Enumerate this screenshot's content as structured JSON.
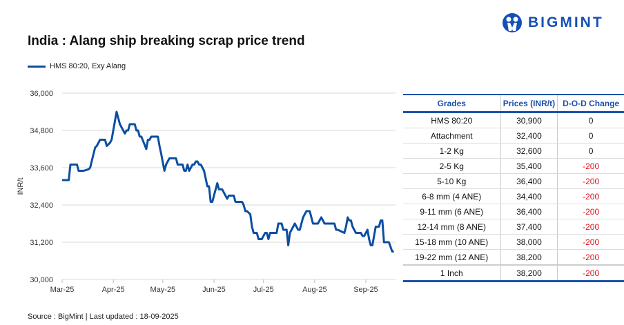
{
  "title": "India : Alang ship breaking scrap price trend",
  "logo": {
    "text": "BIGMINT",
    "color": "#1550b4"
  },
  "source": "Source : BigMint | Last updated : 18-09-2025",
  "table": {
    "headers": [
      "Grades",
      "Prices (INR/t)",
      "D-O-D Change"
    ],
    "rows": [
      [
        "HMS 80:20",
        "30,900",
        "0"
      ],
      [
        "Attachment",
        "32,400",
        "0"
      ],
      [
        "1-2 Kg",
        "32,600",
        "0"
      ],
      [
        "2-5 Kg",
        "35,400",
        "-200"
      ],
      [
        "5-10 Kg",
        "36,400",
        "-200"
      ],
      [
        "6-8 mm (4 ANE)",
        "34,400",
        "-200"
      ],
      [
        "9-11 mm (6 ANE)",
        "36,400",
        "-200"
      ],
      [
        "12-14 mm (8 ANE)",
        "37,400",
        "-200"
      ],
      [
        "15-18 mm (10 ANE)",
        "38,000",
        "-200"
      ],
      [
        "19-22 mm (12 ANE)",
        "38,200",
        "-200"
      ],
      [
        "1 Inch",
        "38,200",
        "-200"
      ]
    ],
    "negative_color": "#e0101c"
  },
  "chart_data": {
    "type": "line",
    "title": "India : Alang ship breaking scrap price trend",
    "xlabel": "",
    "ylabel": "INR/t",
    "ylim": [
      30000,
      36000
    ],
    "yticks": [
      "30,000",
      "31,200",
      "32,400",
      "33,600",
      "34,800",
      "36,000"
    ],
    "xlim": [
      "2025-03-01",
      "2025-09-19"
    ],
    "xticks": [
      {
        "date": "2025-03-01",
        "label": "Mar-25"
      },
      {
        "date": "2025-04-01",
        "label": "Apr-25"
      },
      {
        "date": "2025-05-01",
        "label": "May-25"
      },
      {
        "date": "2025-06-01",
        "label": "Jun-25"
      },
      {
        "date": "2025-07-01",
        "label": "Jul-25"
      },
      {
        "date": "2025-08-01",
        "label": "Aug-25"
      },
      {
        "date": "2025-09-01",
        "label": "Sep-25"
      }
    ],
    "grid": true,
    "legend": "top-left",
    "series": [
      {
        "name": "HMS 80:20, Exy Alang",
        "color": "#0b4ea2",
        "x": [
          "2025-03-01",
          "2025-03-05",
          "2025-03-06",
          "2025-03-10",
          "2025-03-11",
          "2025-03-14",
          "2025-03-17",
          "2025-03-18",
          "2025-03-21",
          "2025-03-22",
          "2025-03-24",
          "2025-03-27",
          "2025-03-28",
          "2025-03-30",
          "2025-03-31",
          "2025-04-03",
          "2025-04-05",
          "2025-04-08",
          "2025-04-09",
          "2025-04-10",
          "2025-04-11",
          "2025-04-14",
          "2025-04-15",
          "2025-04-16",
          "2025-04-17",
          "2025-04-18",
          "2025-04-21",
          "2025-04-22",
          "2025-04-23",
          "2025-04-24",
          "2025-04-28",
          "2025-04-29",
          "2025-04-30",
          "2025-05-02",
          "2025-05-03",
          "2025-05-05",
          "2025-05-09",
          "2025-05-10",
          "2025-05-13",
          "2025-05-14",
          "2025-05-15",
          "2025-05-16",
          "2025-05-17",
          "2025-05-19",
          "2025-05-20",
          "2025-05-21",
          "2025-05-22",
          "2025-05-23",
          "2025-05-24",
          "2025-05-26",
          "2025-05-28",
          "2025-05-29",
          "2025-05-30",
          "2025-05-31",
          "2025-06-03",
          "2025-06-04",
          "2025-06-06",
          "2025-06-07",
          "2025-06-09",
          "2025-06-10",
          "2025-06-13",
          "2025-06-14",
          "2025-06-18",
          "2025-06-19",
          "2025-06-20",
          "2025-06-21",
          "2025-06-23",
          "2025-06-24",
          "2025-06-25",
          "2025-06-27",
          "2025-06-28",
          "2025-06-30",
          "2025-07-02",
          "2025-07-03",
          "2025-07-04",
          "2025-07-05",
          "2025-07-09",
          "2025-07-10",
          "2025-07-12",
          "2025-07-13",
          "2025-07-15",
          "2025-07-16",
          "2025-07-17",
          "2025-07-20",
          "2025-07-22",
          "2025-07-23",
          "2025-07-25",
          "2025-07-27",
          "2025-07-29",
          "2025-07-31",
          "2025-08-03",
          "2025-08-05",
          "2025-08-07",
          "2025-08-13",
          "2025-08-14",
          "2025-08-15",
          "2025-08-19",
          "2025-08-20",
          "2025-08-21",
          "2025-08-22",
          "2025-08-23",
          "2025-08-24",
          "2025-08-26",
          "2025-08-29",
          "2025-08-30",
          "2025-08-31",
          "2025-09-02",
          "2025-09-03",
          "2025-09-04",
          "2025-09-05",
          "2025-09-07",
          "2025-09-09",
          "2025-09-10",
          "2025-09-11",
          "2025-09-12",
          "2025-09-15",
          "2025-09-17",
          "2025-09-18"
        ],
        "values": [
          33200,
          33200,
          33700,
          33700,
          33500,
          33500,
          33550,
          33600,
          34250,
          34300,
          34500,
          34500,
          34300,
          34400,
          34500,
          35400,
          35000,
          34700,
          34800,
          34800,
          35000,
          35000,
          34800,
          34800,
          34600,
          34600,
          34200,
          34500,
          34500,
          34600,
          34600,
          34300,
          34050,
          33500,
          33700,
          33900,
          33900,
          33700,
          33700,
          33500,
          33500,
          33700,
          33500,
          33700,
          33700,
          33800,
          33800,
          33700,
          33700,
          33500,
          33000,
          33000,
          32500,
          32500,
          33100,
          32900,
          32900,
          32800,
          32600,
          32700,
          32700,
          32500,
          32500,
          32400,
          32200,
          32200,
          32100,
          31700,
          31500,
          31500,
          31300,
          31300,
          31500,
          31500,
          31300,
          31500,
          31500,
          31800,
          31800,
          31600,
          31600,
          31100,
          31500,
          31800,
          31600,
          31600,
          32000,
          32200,
          32200,
          31800,
          31800,
          32000,
          31800,
          31800,
          31600,
          31600,
          31500,
          31700,
          32000,
          31900,
          31900,
          31700,
          31500,
          31500,
          31400,
          31400,
          31600,
          31300,
          31100,
          31100,
          31700,
          31700,
          31900,
          31900,
          31200,
          31200,
          30900,
          30900
        ]
      }
    ]
  }
}
